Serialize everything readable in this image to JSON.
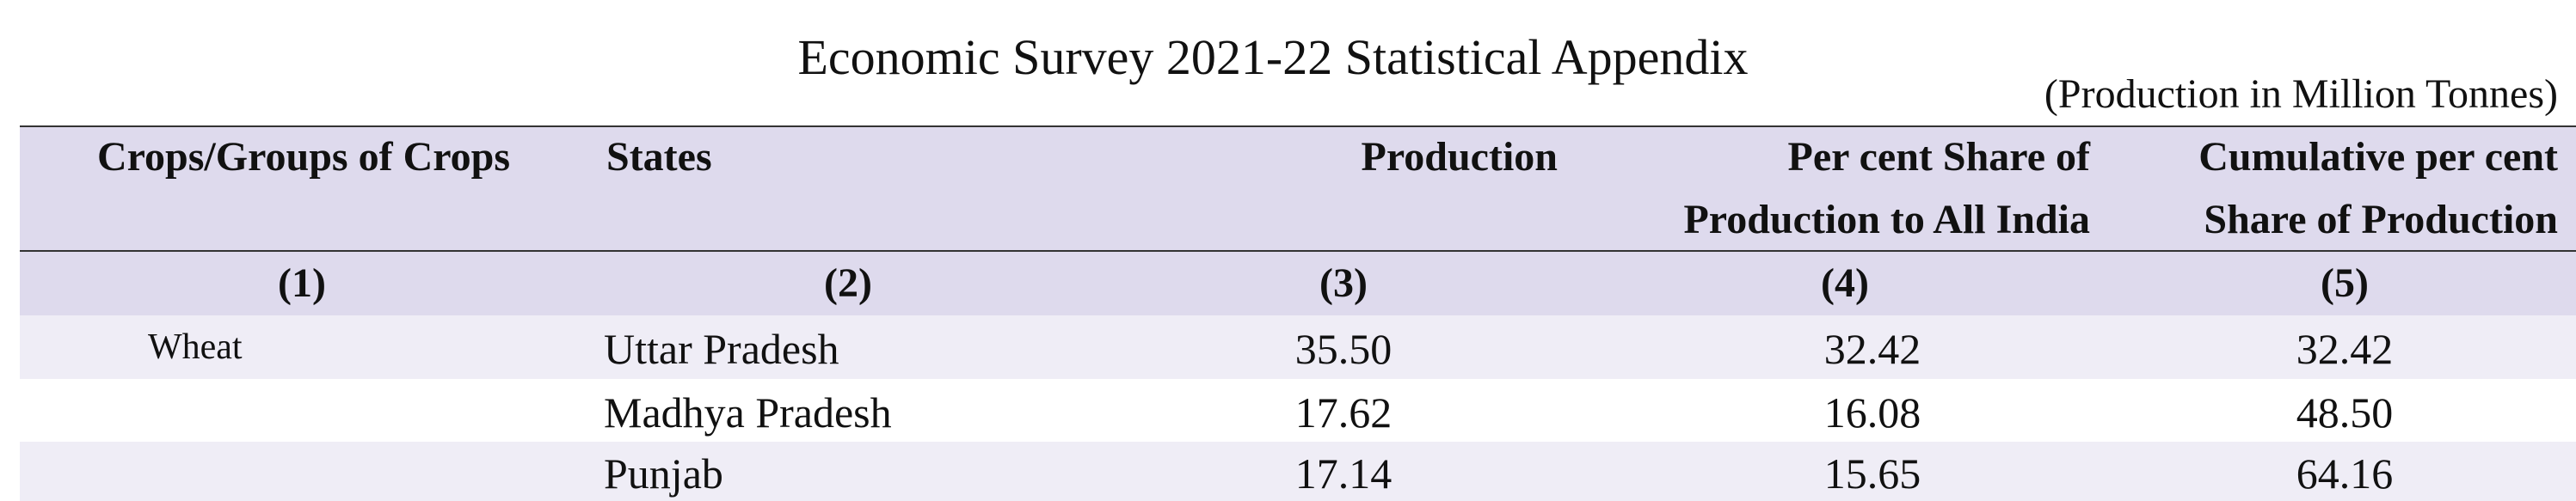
{
  "header": {
    "title": "Economic Survey 2021-22  Statistical Appendix",
    "unit_note": "(Production in Million Tonnes)"
  },
  "table": {
    "columns": [
      [
        "Crops/Groups of Crops"
      ],
      [
        "States"
      ],
      [
        "Production"
      ],
      [
        "Per cent Share of",
        "Production to All India"
      ],
      [
        "Cumulative per cent",
        "Share of Production"
      ]
    ],
    "column_numbers": [
      "(1)",
      "(2)",
      "(3)",
      "(4)",
      "(5)"
    ],
    "rows": [
      [
        "Wheat",
        "Uttar Pradesh",
        "35.50",
        "32.42",
        "32.42"
      ],
      [
        null,
        "Madhya Pradesh",
        "17.62",
        "16.08",
        "48.50"
      ],
      [
        null,
        "Punjab",
        "17.14",
        "15.65",
        "64.16"
      ]
    ]
  }
}
